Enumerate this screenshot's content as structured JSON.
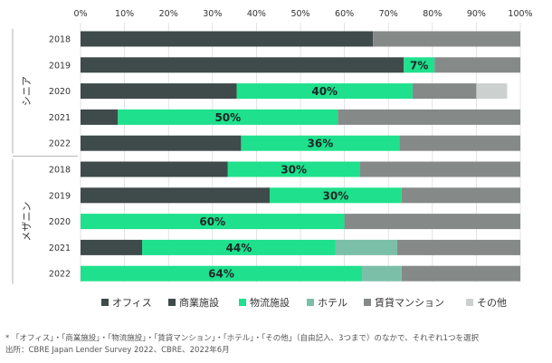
{
  "chart_data": {
    "type": "bar",
    "orientation": "horizontal",
    "stacked": true,
    "xlim": [
      0,
      100
    ],
    "x_ticks": [
      "0%",
      "10%",
      "20%",
      "30%",
      "40%",
      "50%",
      "60%",
      "70%",
      "80%",
      "90%",
      "100%"
    ],
    "legend_position": "bottom",
    "groups": [
      {
        "name": "シニア",
        "categories": [
          "2018",
          "2019",
          "2020",
          "2021",
          "2022"
        ]
      },
      {
        "name": "メザニン",
        "categories": [
          "2018",
          "2019",
          "2020",
          "2021",
          "2022"
        ]
      }
    ],
    "series": [
      {
        "name": "オフィス",
        "color": "#3f4a4a",
        "values": [
          66.5,
          73.5,
          35.5,
          8.5,
          36.5,
          33.5,
          43,
          0,
          14,
          0
        ]
      },
      {
        "name": "商業施設",
        "color": "#3f4a4a",
        "values": [
          0,
          0,
          0,
          0,
          0,
          0,
          0,
          0,
          0,
          0
        ]
      },
      {
        "name": "物流施設",
        "color": "#1fe08d",
        "values": [
          0,
          7,
          40,
          50,
          36,
          30,
          30,
          60,
          44,
          64
        ]
      },
      {
        "name": "ホテル",
        "color": "#7bbfa8",
        "values": [
          0,
          0,
          0,
          0,
          0,
          0,
          0,
          0,
          14,
          9
        ]
      },
      {
        "name": "賃貸マンション",
        "color": "#858a88",
        "values": [
          33.5,
          19.5,
          14.5,
          41.5,
          27.5,
          36.5,
          27,
          40,
          28,
          27
        ]
      },
      {
        "name": "その他",
        "color": "#ccd1d0",
        "values": [
          0,
          0,
          7,
          0,
          0,
          0,
          0,
          0,
          0,
          0
        ]
      }
    ],
    "data_labels": [
      "",
      "7%",
      "40%",
      "50%",
      "36%",
      "30%",
      "30%",
      "60%",
      "44%",
      "64%"
    ]
  },
  "footnotes": {
    "line1": "* 「オフィス」・「商業施設」・「物流施設」・「賃貸マンション」・「ホテル」・「その他」（自由記入、3つまで）のなかで、それぞれ1つを選択",
    "line2": "出所：CBRE Japan Lender Survey 2022、CBRE、2022年6月"
  }
}
